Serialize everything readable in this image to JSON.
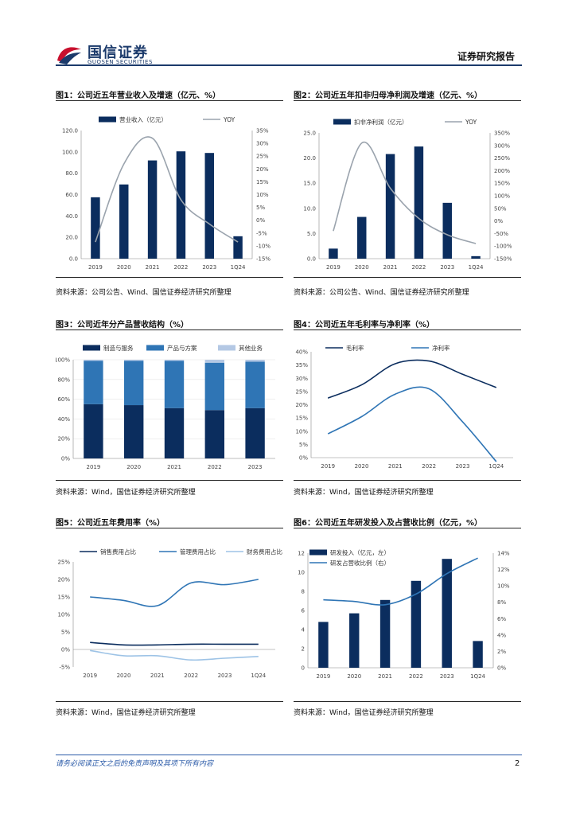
{
  "header": {
    "logo_cn": "国信证券",
    "logo_en": "GUOSEN SECURITIES",
    "report_type": "证券研究报告"
  },
  "figures": [
    {
      "title": "图1：公司近五年营业收入及增速（亿元、%）",
      "source": "资料来源：公司公告、Wind、国信证券经济研究所整理",
      "chart_data": {
        "type": "bar",
        "categories": [
          "2019",
          "2020",
          "2021",
          "2022",
          "2023",
          "1Q24"
        ],
        "series": [
          {
            "name": "营业收入（亿元）",
            "type": "bar",
            "axis": "left",
            "color": "#0b2d5e",
            "values": [
              57.5,
              69.5,
              92.0,
              100.5,
              99.0,
              21.0
            ]
          },
          {
            "name": "YOY",
            "type": "line",
            "axis": "right",
            "color": "#9aa3ad",
            "values": [
              -8.5,
              22.0,
              32.0,
              8.0,
              -1.5,
              -8.5
            ]
          }
        ],
        "left_ticks": [
          "0.0",
          "20.0",
          "40.0",
          "60.0",
          "80.0",
          "100.0",
          "120.0"
        ],
        "right_ticks": [
          "-15%",
          "-10%",
          "-5%",
          "0%",
          "5%",
          "10%",
          "15%",
          "20%",
          "25%",
          "30%",
          "35%"
        ],
        "ylim_left": [
          0,
          120
        ],
        "ylim_right": [
          -15,
          35
        ]
      }
    },
    {
      "title": "图2：公司近五年扣非归母净利润及增速（亿元、%）",
      "source": "资料来源：公司公告、Wind、国信证券经济研究所整理",
      "chart_data": {
        "type": "bar",
        "categories": [
          "2019",
          "2020",
          "2021",
          "2022",
          "2023",
          "1Q24"
        ],
        "series": [
          {
            "name": "扣非净利润（亿元）",
            "type": "bar",
            "axis": "left",
            "color": "#0b2d5e",
            "values": [
              2.0,
              8.3,
              20.8,
              22.3,
              11.1,
              0.5
            ]
          },
          {
            "name": "YOY",
            "type": "line",
            "axis": "right",
            "color": "#9aa3ad",
            "values": [
              -40,
              310,
              130,
              10,
              -55,
              -90
            ]
          }
        ],
        "left_ticks": [
          "0.0",
          "5.0",
          "10.0",
          "15.0",
          "20.0",
          "25.0"
        ],
        "right_ticks": [
          "-150%",
          "-100%",
          "-50%",
          "0%",
          "50%",
          "100%",
          "150%",
          "200%",
          "250%",
          "300%",
          "350%"
        ],
        "ylim_left": [
          0,
          25
        ],
        "ylim_right": [
          -150,
          350
        ]
      }
    },
    {
      "title": "图3：公司近年分产品营收结构（%）",
      "source": "资料来源：Wind，国信证券经济研究所整理",
      "chart_data": {
        "type": "bar",
        "stacked": true,
        "categories": [
          "2019",
          "2020",
          "2021",
          "2022",
          "2023"
        ],
        "series": [
          {
            "name": "制造与服务",
            "color": "#0b2d5e",
            "values": [
              55,
              54,
              51,
              49,
              51
            ]
          },
          {
            "name": "产品与方案",
            "color": "#2f75b5",
            "values": [
              44,
              45,
              48,
              48,
              47
            ]
          },
          {
            "name": "其他业务",
            "color": "#b4c8e4",
            "values": [
              1,
              1,
              1,
              3,
              2
            ]
          }
        ],
        "left_ticks": [
          "0%",
          "20%",
          "40%",
          "60%",
          "80%",
          "100%"
        ],
        "ylim": [
          0,
          100
        ]
      }
    },
    {
      "title": "图4：公司近五年毛利率与净利率（%）",
      "source": "资料来源：Wind，国信证券经济研究所整理",
      "chart_data": {
        "type": "line",
        "categories": [
          "2019",
          "2020",
          "2021",
          "2022",
          "2023",
          "1Q24"
        ],
        "series": [
          {
            "name": "毛利率",
            "color": "#0b2d5e",
            "values": [
              22.5,
              27.5,
              35.5,
              36.5,
              31.5,
              26.5
            ]
          },
          {
            "name": "净利率",
            "color": "#2f75b5",
            "values": [
              9.0,
              15.5,
              24.0,
              26.0,
              13.5,
              -1.5
            ]
          }
        ],
        "left_ticks": [
          "0%",
          "5%",
          "10%",
          "15%",
          "20%",
          "25%",
          "30%",
          "35%",
          "40%"
        ],
        "ylim": [
          0,
          40
        ]
      }
    },
    {
      "title": "图5：公司近五年费用率（%）",
      "source": "资料来源：Wind，国信证券经济研究所整理",
      "chart_data": {
        "type": "line",
        "categories": [
          "2019",
          "2020",
          "2021",
          "2022",
          "2023",
          "1Q24"
        ],
        "series": [
          {
            "name": "销售费用占比",
            "color": "#0b2d5e",
            "values": [
              2.0,
              1.3,
              1.3,
              1.5,
              1.5,
              1.5
            ]
          },
          {
            "name": "管理费用占比",
            "color": "#2f75b5",
            "values": [
              15.0,
              14.0,
              12.5,
              19.0,
              18.5,
              20.0
            ]
          },
          {
            "name": "财务费用占比",
            "color": "#9dc3e6",
            "values": [
              -0.3,
              -1.8,
              -1.8,
              -3.0,
              -2.5,
              -2.0
            ]
          }
        ],
        "left_ticks": [
          "-5%",
          "0%",
          "5%",
          "10%",
          "15%",
          "20%",
          "25%"
        ],
        "ylim": [
          -5,
          25
        ]
      }
    },
    {
      "title": "图6：公司近五年研发投入及占营收比例（亿元，%）",
      "source": "资料来源：Wind，国信证券经济研究所整理",
      "chart_data": {
        "type": "bar",
        "categories": [
          "2019",
          "2020",
          "2021",
          "2022",
          "2023",
          "1Q24"
        ],
        "series": [
          {
            "name": "研发投入（亿元，左）",
            "type": "bar",
            "axis": "left",
            "color": "#0b2d5e",
            "values": [
              4.8,
              5.7,
              7.1,
              9.1,
              11.4,
              2.8
            ]
          },
          {
            "name": "研发占营收比例（右）",
            "type": "line",
            "axis": "right",
            "color": "#2f75b5",
            "values": [
              8.3,
              8.1,
              7.7,
              9.0,
              11.5,
              13.4
            ]
          }
        ],
        "left_ticks": [
          "0",
          "2",
          "4",
          "6",
          "8",
          "10",
          "12"
        ],
        "right_ticks": [
          "0%",
          "2%",
          "4%",
          "6%",
          "8%",
          "10%",
          "12%",
          "14%"
        ],
        "ylim_left": [
          0,
          12
        ],
        "ylim_right": [
          0,
          14
        ]
      }
    }
  ],
  "footer": {
    "disclaimer": "请务必阅读正文之后的免责声明及其项下所有内容",
    "page": "2"
  }
}
